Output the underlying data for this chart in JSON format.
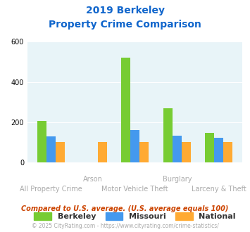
{
  "title_line1": "2019 Berkeley",
  "title_line2": "Property Crime Comparison",
  "categories": [
    "All Property Crime",
    "Arson",
    "Motor Vehicle Theft",
    "Burglary",
    "Larceny & Theft"
  ],
  "top_labels": [
    "",
    "Arson",
    "",
    "Burglary",
    ""
  ],
  "bottom_labels": [
    "All Property Crime",
    "",
    "Motor Vehicle Theft",
    "",
    "Larceny & Theft"
  ],
  "berkeley": [
    205,
    0,
    520,
    270,
    148
  ],
  "missouri": [
    130,
    0,
    160,
    132,
    122
  ],
  "national": [
    100,
    100,
    100,
    100,
    100
  ],
  "bar_colors": {
    "berkeley": "#77cc33",
    "missouri": "#4499ee",
    "national": "#ffaa33"
  },
  "ylim": [
    0,
    600
  ],
  "yticks": [
    0,
    200,
    400,
    600
  ],
  "background_color": "#e8f4f8",
  "title_color": "#1166cc",
  "label_color": "#aaaaaa",
  "legend_labels": [
    "Berkeley",
    "Missouri",
    "National"
  ],
  "footnote1": "Compared to U.S. average. (U.S. average equals 100)",
  "footnote2": "© 2025 CityRating.com - https://www.cityrating.com/crime-statistics/",
  "footnote1_color": "#cc4400",
  "footnote2_color": "#aaaaaa",
  "grid_color": "#ffffff",
  "bar_width": 0.22
}
